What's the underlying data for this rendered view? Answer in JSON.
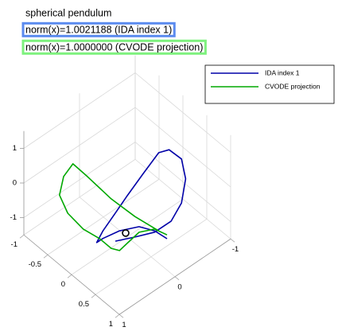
{
  "chart_data": {
    "type": "line3d",
    "title": "spherical pendulum",
    "annotations": [
      {
        "text": "norm(x)=1.0021188 (IDA index 1)",
        "color": "#5b8bef"
      },
      {
        "text": "norm(x)=1.0000000 (CVODE projection)",
        "color": "#7ef17e"
      }
    ],
    "xlim": [
      -1,
      1
    ],
    "xticks": [
      -1,
      -0.5,
      0,
      0.5,
      1
    ],
    "ylim": [
      -1,
      1
    ],
    "yticks": [
      -1,
      0,
      1
    ],
    "zlim": [
      -1.5,
      1.5
    ],
    "zticks": [
      -1,
      0,
      1
    ],
    "grid": true,
    "legend": "northeast",
    "series": [
      {
        "name": "IDA index 1",
        "color": "#0000a8",
        "x": [
          0.6,
          0.48,
          0.33,
          0.14,
          -0.02,
          -0.08,
          -0.02,
          0.1,
          0.22,
          0.37,
          0.52,
          0.62,
          0.74,
          0.78,
          0.74,
          0.64,
          0.48,
          0.29,
          0.1
        ],
        "y": [
          -0.2,
          -0.08,
          0.07,
          0.26,
          0.42,
          0.48,
          0.42,
          0.3,
          0.18,
          0.03,
          -0.12,
          -0.22,
          -0.34,
          -0.38,
          -0.34,
          -0.24,
          -0.08,
          0.11,
          0.3
        ],
        "z": [
          -1.08,
          -0.86,
          -0.75,
          -0.88,
          -1.11,
          -1.23,
          -0.89,
          -0.37,
          0.16,
          0.79,
          1.4,
          1.49,
          1.23,
          0.66,
          -0.04,
          -0.57,
          -0.9,
          -1.05,
          -1.18
        ]
      },
      {
        "name": "CVODE projection",
        "color": "#00a800",
        "x": [
          0.6,
          0.48,
          0.33,
          0.22,
          0.14,
          0.06,
          -0.05,
          -0.21,
          -0.36,
          -0.44,
          -0.4,
          -0.31,
          -0.17,
          0.06,
          0.29,
          0.52
        ],
        "y": [
          -0.2,
          -0.08,
          0.07,
          0.18,
          0.26,
          0.34,
          0.45,
          0.61,
          0.76,
          0.84,
          0.8,
          0.71,
          0.57,
          0.34,
          0.11,
          -0.12
        ],
        "z": [
          -0.97,
          -0.81,
          -0.91,
          -1.22,
          -1.45,
          -1.39,
          -1.12,
          -0.85,
          -0.4,
          0.12,
          0.66,
          1.03,
          0.67,
          0.04,
          -0.46,
          -0.86
        ]
      }
    ],
    "marker": {
      "x": 0.2,
      "y": 0.2,
      "z": -0.94
    }
  }
}
